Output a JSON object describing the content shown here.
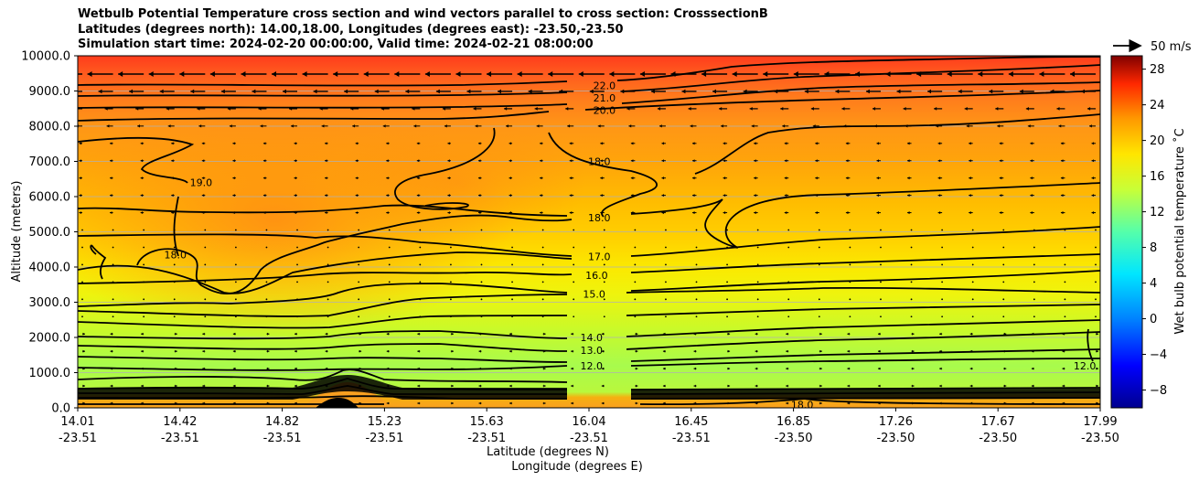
{
  "chart_data": {
    "type": "heatmap",
    "title_lines": [
      "Wetbulb Potential Temperature cross section and wind vectors parallel to cross section: CrosssectionB",
      "Latitudes (degrees north): 14.00,18.00, Longitudes (degrees east): -23.50,-23.50",
      "Simulation start time: 2024-02-20 00:00:00, Valid time: 2024-02-21 08:00:00"
    ],
    "xlabel_lat": "Latitude (degrees N)",
    "xlabel_lon": "Longitude (degrees E)",
    "ylabel": "Altitude (meters)",
    "colorbar_label": "Wet bulb potential temperature $^\\circ$C",
    "colorbar_label_text": "Wet bulb potential temperature ˚C",
    "colorbar_ticks": [
      "−8",
      "−4",
      "0",
      "4",
      "8",
      "12",
      "16",
      "20",
      "24",
      "28"
    ],
    "colorbar_tick_values": [
      -8,
      -4,
      0,
      4,
      8,
      12,
      16,
      20,
      24,
      28
    ],
    "colorbar_range": [
      -10,
      29.5
    ],
    "ylim": [
      0,
      10000
    ],
    "y_ticks": [
      "0.0",
      "1000.0",
      "2000.0",
      "3000.0",
      "4000.0",
      "5000.0",
      "6000.0",
      "7000.0",
      "8000.0",
      "9000.0",
      "10000.0"
    ],
    "y_tick_values": [
      0,
      1000,
      2000,
      3000,
      4000,
      5000,
      6000,
      7000,
      8000,
      9000,
      10000
    ],
    "x_ticks_lat": [
      "14.01",
      "14.42",
      "14.82",
      "15.23",
      "15.63",
      "16.04",
      "16.45",
      "16.85",
      "17.26",
      "17.67",
      "17.99"
    ],
    "x_ticks_lon": [
      "-23.51",
      "-23.51",
      "-23.51",
      "-23.51",
      "-23.51",
      "-23.51",
      "-23.51",
      "-23.50",
      "-23.50",
      "-23.50",
      "-23.50"
    ],
    "xlim": [
      14.01,
      17.99
    ],
    "quiver_key_label": "50 m/s",
    "grid": true,
    "contour_labels": [
      {
        "text": "22.0",
        "lat": 16.06,
        "alt": 9150
      },
      {
        "text": "21.0",
        "lat": 16.06,
        "alt": 8800
      },
      {
        "text": "20.0",
        "lat": 16.06,
        "alt": 8450
      },
      {
        "text": "18.0",
        "lat": 16.04,
        "alt": 7000
      },
      {
        "text": "19.0",
        "lat": 14.49,
        "alt": 6400
      },
      {
        "text": "18.0",
        "lat": 16.04,
        "alt": 5400
      },
      {
        "text": "18.0",
        "lat": 14.39,
        "alt": 4350
      },
      {
        "text": "17.0",
        "lat": 16.04,
        "alt": 4300
      },
      {
        "text": "16.0",
        "lat": 16.03,
        "alt": 3770
      },
      {
        "text": "15.0",
        "lat": 16.02,
        "alt": 3230
      },
      {
        "text": "14.0",
        "lat": 16.01,
        "alt": 2000
      },
      {
        "text": "13.0",
        "lat": 16.01,
        "alt": 1630
      },
      {
        "text": "12.0",
        "lat": 16.01,
        "alt": 1200
      },
      {
        "text": "12.0",
        "lat": 17.93,
        "alt": 1200
      },
      {
        "text": "18.0",
        "lat": 16.83,
        "alt": 90
      }
    ]
  }
}
